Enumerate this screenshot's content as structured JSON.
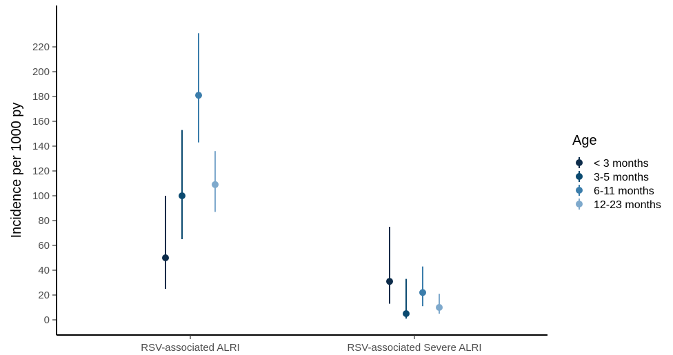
{
  "chart_data": {
    "type": "scatter",
    "subtype": "point-range",
    "title": "",
    "xlabel": "",
    "ylabel": "Incidence per 1000 py",
    "ylim": [
      -12,
      252
    ],
    "yticks": [
      0,
      20,
      40,
      60,
      80,
      100,
      120,
      140,
      160,
      180,
      200,
      220
    ],
    "categories": [
      "RSV-associated ALRI",
      "RSV-associated Severe ALRI"
    ],
    "grid": false,
    "legend": {
      "title": "Age",
      "position": "right"
    },
    "series": [
      {
        "name": "< 3 months",
        "color": "#0d2c4a",
        "values": [
          50,
          31
        ],
        "lower": [
          25,
          13
        ],
        "upper": [
          100,
          75
        ]
      },
      {
        "name": "3-5 months",
        "color": "#0b4a70",
        "values": [
          100,
          5
        ],
        "lower": [
          65,
          1
        ],
        "upper": [
          153,
          33
        ]
      },
      {
        "name": "6-11 months",
        "color": "#3b7dab",
        "values": [
          181,
          22
        ],
        "lower": [
          143,
          11
        ],
        "upper": [
          231,
          43
        ]
      },
      {
        "name": "12-23 months",
        "color": "#7ea9cc",
        "values": [
          109,
          10
        ],
        "lower": [
          87,
          5
        ],
        "upper": [
          136,
          21
        ]
      }
    ]
  }
}
